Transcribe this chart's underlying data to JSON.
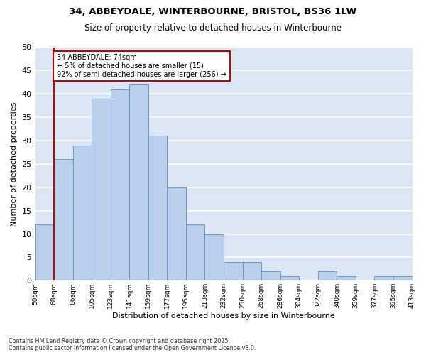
{
  "title1": "34, ABBEYDALE, WINTERBOURNE, BRISTOL, BS36 1LW",
  "title2": "Size of property relative to detached houses in Winterbourne",
  "xlabel": "Distribution of detached houses by size in Winterbourne",
  "ylabel": "Number of detached properties",
  "bar_values": [
    12,
    26,
    29,
    39,
    41,
    42,
    31,
    20,
    12,
    10,
    4,
    4,
    2,
    1,
    0,
    2,
    1,
    0,
    1,
    1
  ],
  "bin_labels": [
    "50sqm",
    "68sqm",
    "86sqm",
    "105sqm",
    "123sqm",
    "141sqm",
    "159sqm",
    "177sqm",
    "195sqm",
    "213sqm",
    "232sqm",
    "250sqm",
    "268sqm",
    "286sqm",
    "304sqm",
    "322sqm",
    "340sqm",
    "359sqm",
    "377sqm",
    "395sqm",
    "413sqm"
  ],
  "bar_color": "#b8d0ea",
  "bar_edge_color": "#6699cc",
  "bg_color": "#dce6f5",
  "grid_color": "#ffffff",
  "vline_color": "#cc0000",
  "annotation_text": "34 ABBEYDALE: 74sqm\n← 5% of detached houses are smaller (15)\n92% of semi-detached houses are larger (256) →",
  "footnote": "Contains HM Land Registry data © Crown copyright and database right 2025.\nContains public sector information licensed under the Open Government Licence v3.0.",
  "ylim": [
    0,
    50
  ],
  "yticks": [
    0,
    5,
    10,
    15,
    20,
    25,
    30,
    35,
    40,
    45,
    50
  ]
}
